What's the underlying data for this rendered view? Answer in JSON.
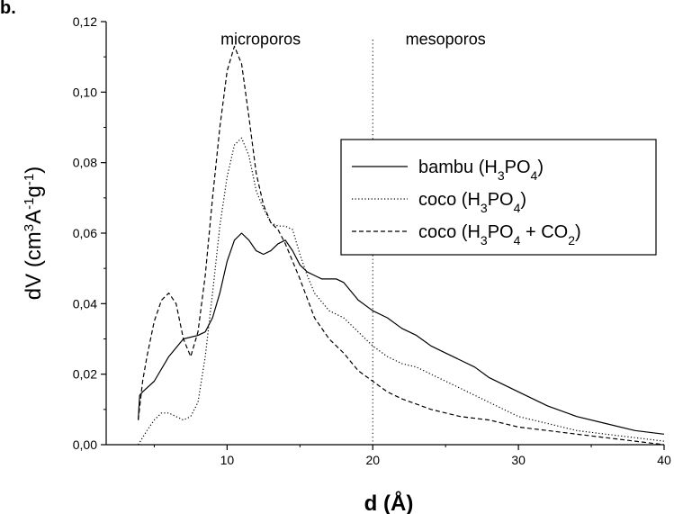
{
  "panel_label": "b.",
  "chart_data": {
    "type": "line",
    "xlabel": "d (Å)",
    "ylabel": "dV (cm³A⁻¹g⁻¹)",
    "ylabel_parts": {
      "main": "dV (cm",
      "sup1": "3",
      "mid": "A",
      "sup2": "-1",
      "mid2": "g",
      "sup3": "-1",
      "end": ")"
    },
    "xlim": [
      1.7,
      40
    ],
    "ylim": [
      0,
      0.12
    ],
    "x_ticks": [
      10,
      20,
      30,
      40
    ],
    "x_tick_labels": [
      "10",
      "20",
      "30",
      "40"
    ],
    "y_ticks": [
      0,
      0.02,
      0.04,
      0.06,
      0.08,
      0.1,
      0.12
    ],
    "y_tick_labels": [
      "0,00",
      "0,02",
      "0,04",
      "0,06",
      "0,08",
      "0,10",
      "0,12"
    ],
    "annotations": [
      {
        "text": "microporos",
        "x": 12.3,
        "y": 0.115
      },
      {
        "text": "mesoporos",
        "x": 25,
        "y": 0.115
      }
    ],
    "vline": {
      "x": 20,
      "style": "dotted"
    },
    "legend_position": "right",
    "series": [
      {
        "name": "bambu (H3PO4)",
        "legend": {
          "pre": "bambu (H",
          "s1": "3",
          "mid": "PO",
          "s2": "4",
          "post": ")"
        },
        "style": "solid",
        "x": [
          3.9,
          4.0,
          4.2,
          5.0,
          6.0,
          7.0,
          8.0,
          8.5,
          9.0,
          9.5,
          10.0,
          10.5,
          11.0,
          11.5,
          12.0,
          12.5,
          13.0,
          13.5,
          14.0,
          14.5,
          15.0,
          15.5,
          16.0,
          16.5,
          17.0,
          17.5,
          18.0,
          19.0,
          20.0,
          21.0,
          22.0,
          23.0,
          24.0,
          25.0,
          26.0,
          27.0,
          28.0,
          30.0,
          32.0,
          34.0,
          36.0,
          38.0,
          40.0
        ],
        "y": [
          0.007,
          0.014,
          0.015,
          0.018,
          0.025,
          0.03,
          0.031,
          0.032,
          0.036,
          0.043,
          0.052,
          0.058,
          0.06,
          0.058,
          0.055,
          0.054,
          0.055,
          0.057,
          0.058,
          0.055,
          0.051,
          0.049,
          0.048,
          0.047,
          0.047,
          0.047,
          0.046,
          0.041,
          0.038,
          0.036,
          0.033,
          0.031,
          0.028,
          0.026,
          0.024,
          0.022,
          0.019,
          0.015,
          0.011,
          0.008,
          0.006,
          0.004,
          0.003
        ]
      },
      {
        "name": "coco (H3PO4)",
        "legend": {
          "pre": "coco (H",
          "s1": "3",
          "mid": "PO",
          "s2": "4",
          "post": ")"
        },
        "style": "dotted",
        "x": [
          3.9,
          4.5,
          5.0,
          5.5,
          6.0,
          6.5,
          7.0,
          7.5,
          8.0,
          8.5,
          9.0,
          9.5,
          10.0,
          10.5,
          11.0,
          11.5,
          12.0,
          12.5,
          13.0,
          13.5,
          14.0,
          14.5,
          15.0,
          15.5,
          16.0,
          17.0,
          18.0,
          19.0,
          20.0,
          21.0,
          22.0,
          23.0,
          24.0,
          25.0,
          26.0,
          28.0,
          30.0,
          32.0,
          34.0,
          36.0,
          38.0,
          40.0
        ],
        "y": [
          0.0,
          0.004,
          0.007,
          0.009,
          0.009,
          0.008,
          0.007,
          0.008,
          0.012,
          0.025,
          0.043,
          0.062,
          0.076,
          0.085,
          0.087,
          0.082,
          0.072,
          0.067,
          0.063,
          0.062,
          0.062,
          0.061,
          0.054,
          0.048,
          0.043,
          0.038,
          0.036,
          0.032,
          0.028,
          0.025,
          0.023,
          0.022,
          0.02,
          0.018,
          0.016,
          0.012,
          0.008,
          0.006,
          0.004,
          0.003,
          0.002,
          0.001
        ]
      },
      {
        "name": "coco (H3PO4 + CO2)",
        "legend": {
          "pre": "coco (H",
          "s1": "3",
          "mid": "PO",
          "s2": "4",
          "mid2": " + CO",
          "s3": "2",
          "post": ")"
        },
        "style": "dashed",
        "x": [
          3.9,
          4.2,
          4.5,
          5.0,
          5.5,
          6.0,
          6.5,
          7.0,
          7.5,
          8.0,
          8.5,
          9.0,
          9.5,
          10.0,
          10.5,
          11.0,
          11.5,
          12.0,
          12.5,
          13.0,
          13.5,
          14.0,
          15.0,
          16.0,
          17.0,
          18.0,
          19.0,
          20.0,
          21.0,
          22.0,
          24.0,
          26.0,
          28.0,
          30.0,
          32.0,
          34.0,
          36.0,
          38.0,
          40.0
        ],
        "y": [
          0.007,
          0.018,
          0.025,
          0.035,
          0.041,
          0.043,
          0.04,
          0.03,
          0.025,
          0.032,
          0.048,
          0.07,
          0.09,
          0.106,
          0.113,
          0.108,
          0.093,
          0.077,
          0.068,
          0.063,
          0.061,
          0.057,
          0.047,
          0.036,
          0.03,
          0.026,
          0.021,
          0.018,
          0.015,
          0.013,
          0.01,
          0.008,
          0.007,
          0.005,
          0.004,
          0.003,
          0.002,
          0.001,
          0.0
        ]
      }
    ]
  }
}
